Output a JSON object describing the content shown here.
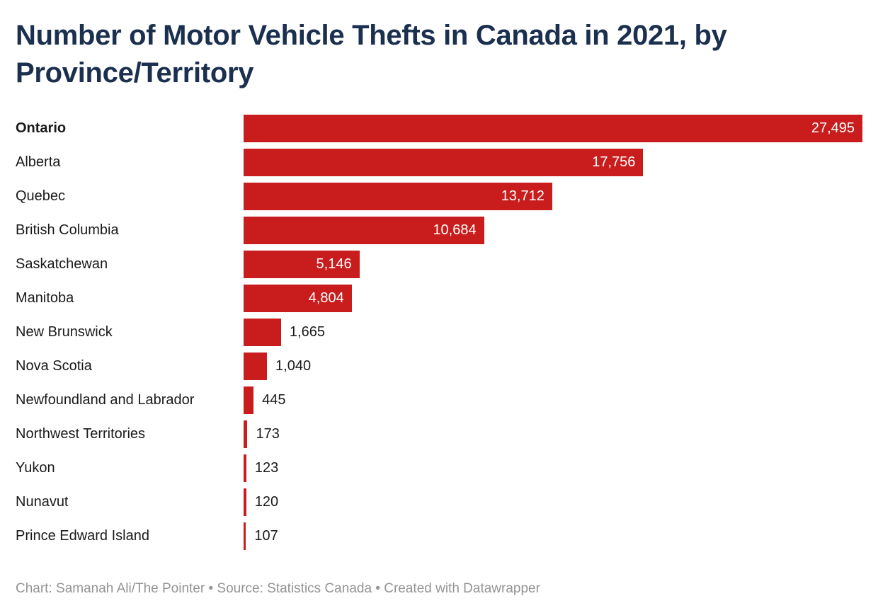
{
  "title": "Number of Motor Vehicle Thefts in Canada in 2021, by Province/Territory",
  "footer": {
    "text": "Chart: Samanah Ali/The Pointer • Source: Statistics Canada • Created with Datawrapper"
  },
  "colors": {
    "bar": "#c91d1d",
    "title": "#1b2f4e",
    "value_inside": "#ffffff",
    "value_outside": "#1a1a1a",
    "category_label": "#1a1a1a",
    "footer": "#949494",
    "background": "#ffffff"
  },
  "chart_data": {
    "type": "bar",
    "orientation": "horizontal",
    "title": "Number of Motor Vehicle Thefts in Canada in 2021, by Province/Territory",
    "categories": [
      "Ontario",
      "Alberta",
      "Quebec",
      "British Columbia",
      "Saskatchewan",
      "Manitoba",
      "New Brunswick",
      "Nova Scotia",
      "Newfoundland and Labrador",
      "Northwest Territories",
      "Yukon",
      "Nunavut",
      "Prince Edward Island"
    ],
    "values": [
      27495,
      17756,
      13712,
      10684,
      5146,
      4804,
      1665,
      1040,
      445,
      173,
      123,
      120,
      107
    ],
    "value_labels": [
      "27,495",
      "17,756",
      "13,712",
      "10,684",
      "5,146",
      "4,804",
      "1,665",
      "1,040",
      "445",
      "173",
      "123",
      "120",
      "107"
    ],
    "xlabel": "",
    "ylabel": "",
    "xlim": [
      0,
      27495
    ],
    "grid": false,
    "legend": "none",
    "highlighted_category": "Ontario",
    "value_label_placement": "inside-right for wide bars, outside-right for narrow bars"
  }
}
